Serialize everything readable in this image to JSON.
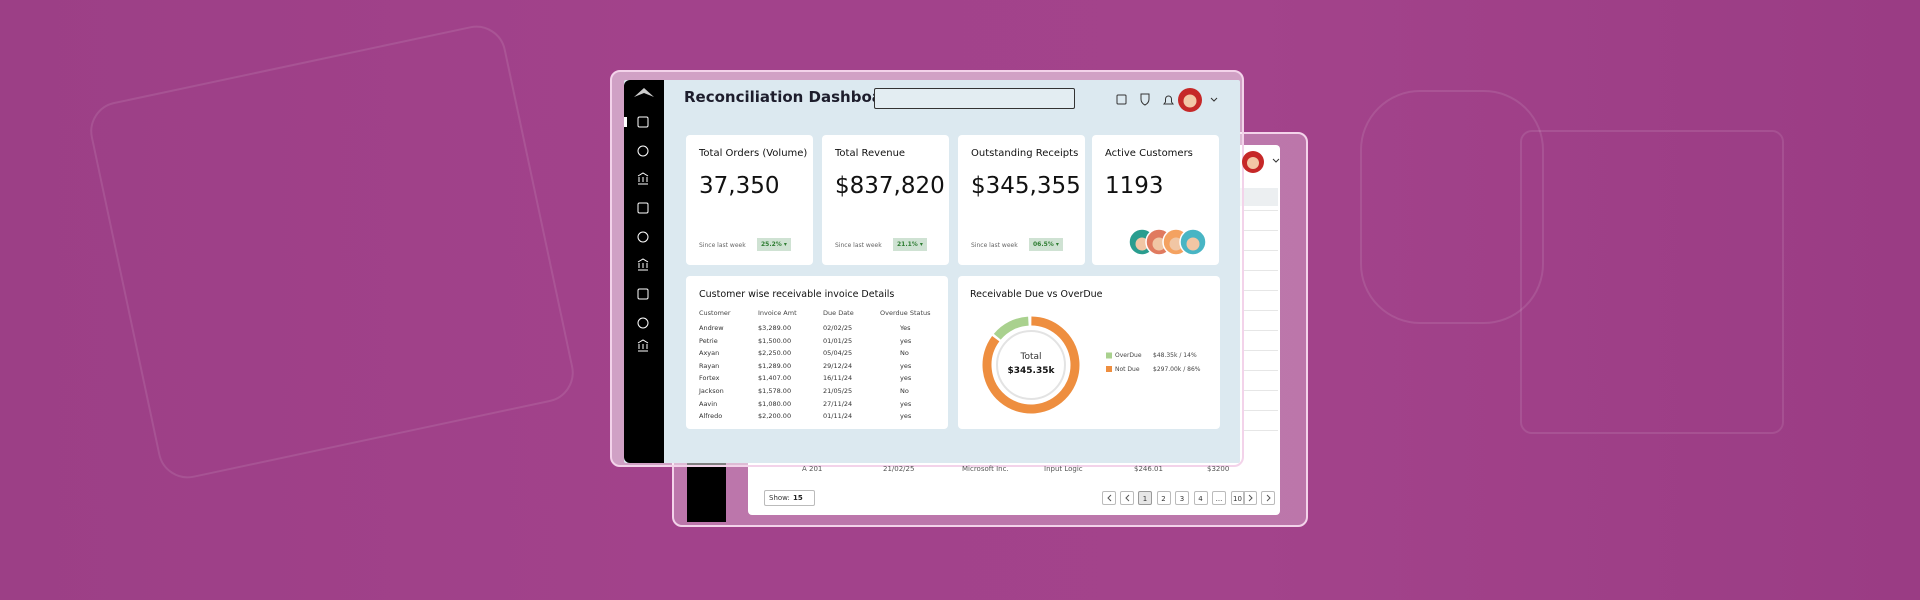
{
  "header": {
    "title": "Reconciliation Dashboard"
  },
  "cards": [
    {
      "label": "Total Orders (Volume)",
      "value": "37,350",
      "note": "Since last week",
      "change": "25.2% ▾"
    },
    {
      "label": "Total  Revenue",
      "value": "$837,820",
      "note": "Since last week",
      "change": "21.1% ▾"
    },
    {
      "label": "Outstanding Receipts",
      "value": "$345,355",
      "note": "Since last week",
      "change": "06.5% ▾"
    },
    {
      "label": "Active Customers",
      "value": "1193"
    }
  ],
  "invoice_table": {
    "title": "Customer wise receivable invoice Details",
    "columns": [
      "Customer",
      "Invoice Amt",
      "Due Date",
      "Overdue Status"
    ],
    "rows": [
      [
        "Andrew",
        "$3,289.00",
        "02/02/25",
        "Yes"
      ],
      [
        "Petrie",
        "$1,500.00",
        "01/01/25",
        "yes"
      ],
      [
        "Axyan",
        "$2,250.00",
        "05/04/25",
        "No"
      ],
      [
        "Rayan",
        "$1,289.00",
        "29/12/24",
        "yes"
      ],
      [
        "Fortex",
        "$1,407.00",
        "16/11/24",
        "yes"
      ],
      [
        "Jackson",
        "$1,578.00",
        "21/05/25",
        "No"
      ],
      [
        "Aavin",
        "$1,080.00",
        "27/11/24",
        "yes"
      ],
      [
        "Alfredo",
        "$2,200.00",
        "01/11/24",
        "yes"
      ]
    ]
  },
  "receivables": {
    "title": "Receivable Due vs OverDue",
    "center_label": "Total",
    "center_value": "$345.35k",
    "segments": [
      {
        "name": "OverDue",
        "amount": "$48.35k / 14%",
        "share": 14,
        "color": "#a9d18e"
      },
      {
        "name": "Not Due",
        "amount": "$297.00k / 86%",
        "share": 86,
        "color": "#ee8e3f"
      }
    ]
  },
  "back_window": {
    "row": [
      "A 201",
      "21/02/25",
      "Microsoft Inc.",
      "Input Logic",
      "$246.01",
      "$3200"
    ],
    "show_label": "Show:",
    "show_value": "15",
    "pages": [
      "1",
      "2",
      "3",
      "4",
      "...",
      "10"
    ]
  }
}
